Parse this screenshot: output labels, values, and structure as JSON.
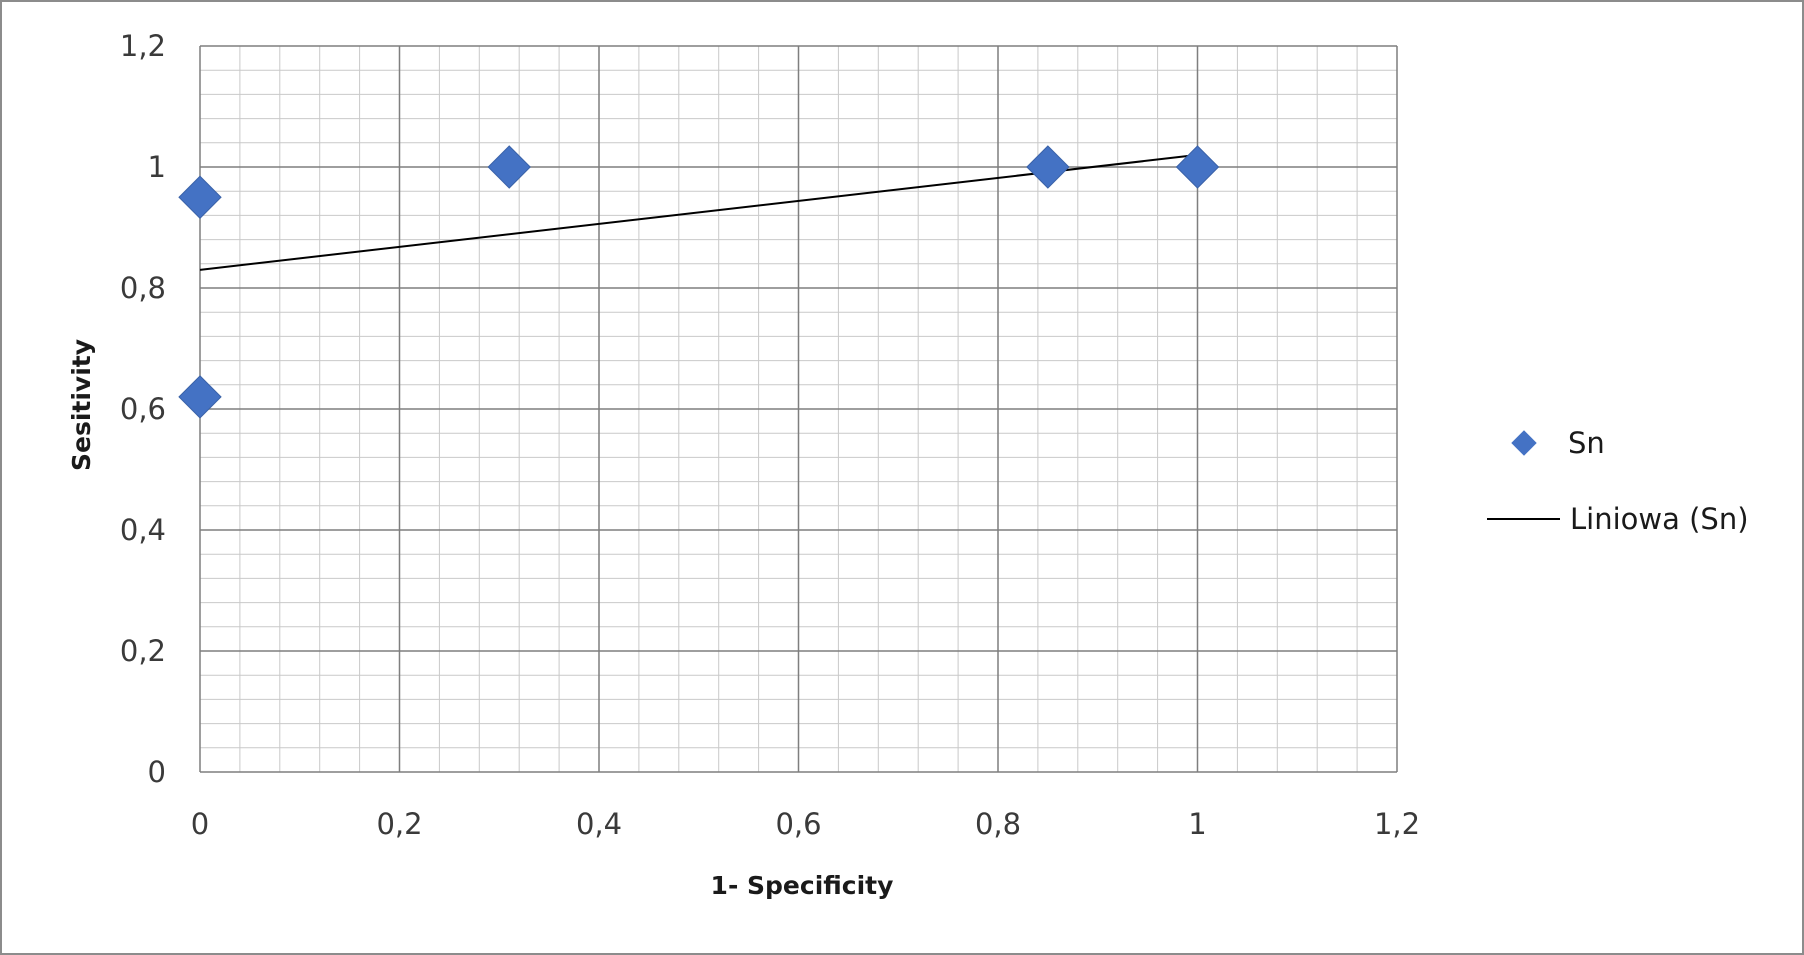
{
  "chart_data": {
    "type": "scatter",
    "title": "",
    "xlabel": "1- Specificity",
    "ylabel": "Sesitivity",
    "xlim": [
      0,
      1.2
    ],
    "ylim": [
      0,
      1.2
    ],
    "x_ticks": [
      {
        "value": 0,
        "label": "0"
      },
      {
        "value": 0.2,
        "label": "0,2"
      },
      {
        "value": 0.4,
        "label": "0,4"
      },
      {
        "value": 0.6,
        "label": "0,6"
      },
      {
        "value": 0.8,
        "label": "0,8"
      },
      {
        "value": 1,
        "label": "1"
      },
      {
        "value": 1.2,
        "label": "1,2"
      }
    ],
    "y_ticks": [
      {
        "value": 0,
        "label": "0"
      },
      {
        "value": 0.2,
        "label": "0,2"
      },
      {
        "value": 0.4,
        "label": "0,4"
      },
      {
        "value": 0.6,
        "label": "0,6"
      },
      {
        "value": 0.8,
        "label": "0,8"
      },
      {
        "value": 1,
        "label": "1"
      },
      {
        "value": 1.2,
        "label": "1,2"
      }
    ],
    "grid": true,
    "minor_grid": true,
    "legend_position": "right",
    "series": [
      {
        "name": "Sn",
        "kind": "points",
        "marker": "diamond",
        "color": "#4472C4",
        "points": [
          {
            "x": 0,
            "y": 0.95
          },
          {
            "x": 0,
            "y": 0.62
          },
          {
            "x": 0.31,
            "y": 1.0
          },
          {
            "x": 0.85,
            "y": 1.0
          },
          {
            "x": 1.0,
            "y": 1.0
          }
        ]
      },
      {
        "name": "Liniowa (Sn)",
        "kind": "trendline",
        "color": "#000000",
        "points": [
          {
            "x": 0,
            "y": 0.83
          },
          {
            "x": 1.0,
            "y": 1.02
          }
        ]
      }
    ]
  }
}
